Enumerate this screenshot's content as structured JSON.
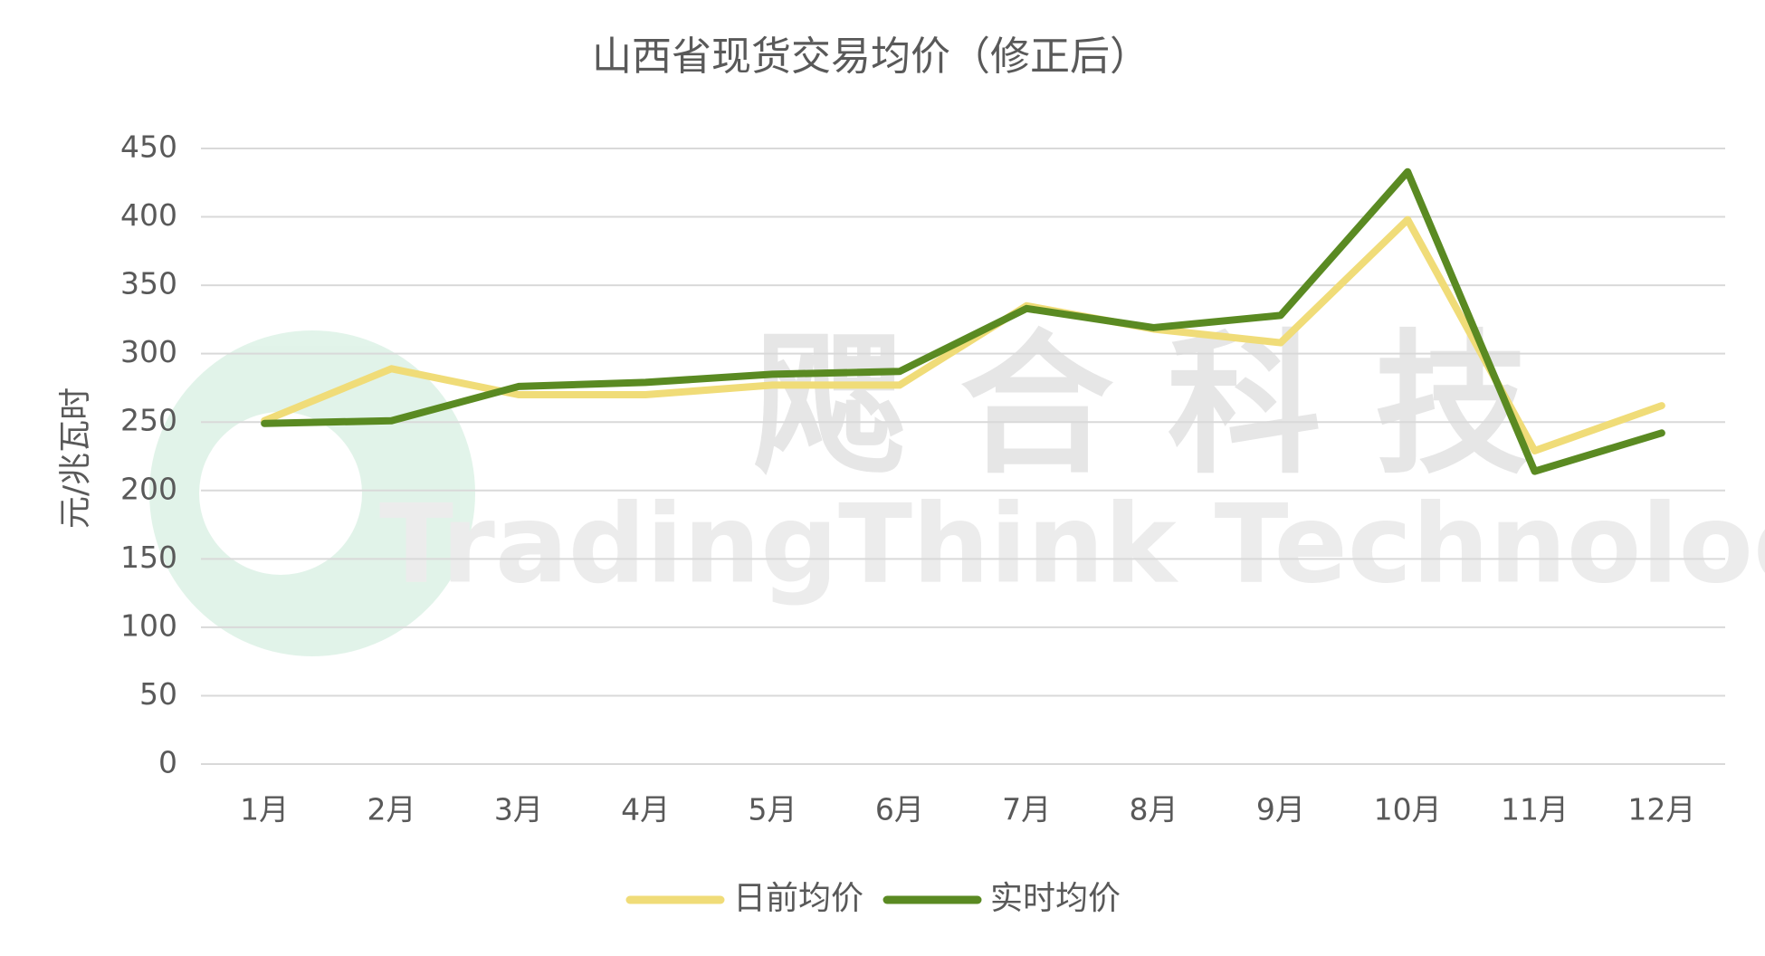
{
  "chart_data": {
    "type": "line",
    "title": "山西省现货交易均价（修正后）",
    "y_label": "元/兆瓦时",
    "categories": [
      "1月",
      "2月",
      "3月",
      "4月",
      "5月",
      "6月",
      "7月",
      "8月",
      "9月",
      "10月",
      "11月",
      "12月"
    ],
    "series": [
      {
        "name": "日前均价",
        "color": "#f0dc78",
        "values": [
          251,
          289,
          270,
          270,
          277,
          277,
          335,
          318,
          308,
          398,
          229,
          262
        ]
      },
      {
        "name": "实时均价",
        "color": "#5a8a22",
        "values": [
          249,
          251,
          276,
          279,
          285,
          287,
          333,
          319,
          328,
          433,
          214,
          242
        ]
      }
    ],
    "ylim": [
      0,
      450
    ],
    "yticks": [
      0,
      50,
      100,
      150,
      200,
      250,
      300,
      350,
      400,
      450
    ],
    "grid": true,
    "legend": "bottom",
    "watermark": {
      "cn": "飔 合 科 技",
      "en": "TradingThink Technology"
    }
  }
}
